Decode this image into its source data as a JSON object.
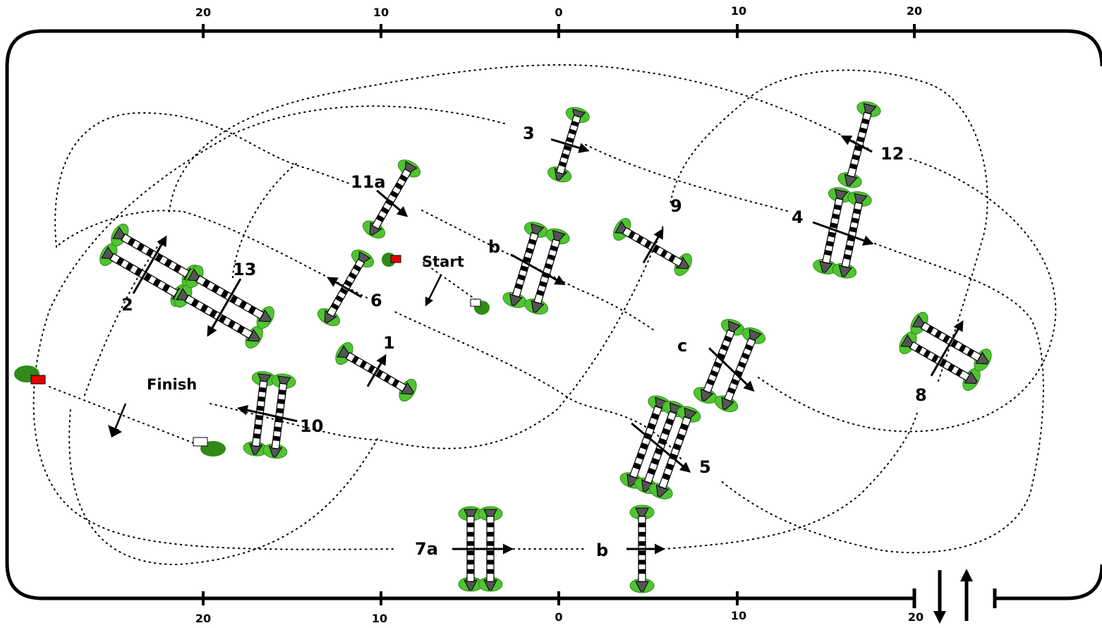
{
  "scale": {
    "top": [
      "20",
      "10",
      "0",
      "10",
      "20"
    ],
    "bottom": [
      "20",
      "10",
      "0",
      "10",
      "20"
    ]
  },
  "labels": {
    "start": "Start",
    "finish": "Finish",
    "j1": "1",
    "j2": "2",
    "j3": "3",
    "j4": "4",
    "j5": "5",
    "j6": "6",
    "j7a": "7a",
    "j7b": "b",
    "j8": "8",
    "j9": "9",
    "j10": "10",
    "j11a": "11a",
    "j11b": "b",
    "j11c": "c",
    "j12": "12",
    "j13": "13"
  },
  "icons": {
    "jump": "jump-icon",
    "flag": "flag-icon",
    "direction_arrow": "direction-arrow-icon",
    "entrance_arrows": "entrance-arrows-icon"
  },
  "colors": {
    "arena_border": "#000000",
    "path": "#000000",
    "greenery": "#4fc431",
    "flag_red": "#e60000",
    "flag_white": "#ffffff"
  }
}
